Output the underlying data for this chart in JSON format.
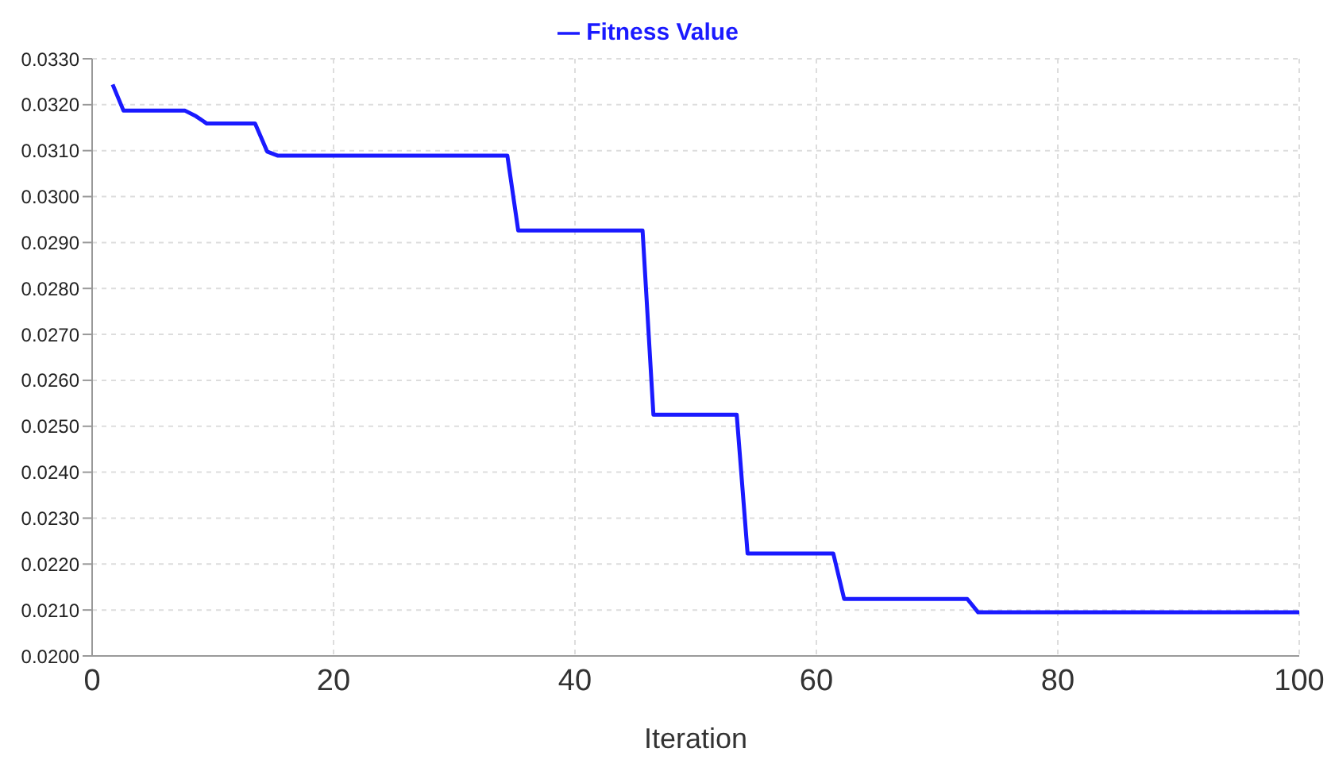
{
  "chart_data": {
    "type": "line",
    "xlabel": "Iteration",
    "x": [
      1.7,
      2.6,
      7.7,
      8.6,
      9.5,
      13.5,
      14.5,
      15.4,
      34.4,
      35.3,
      45.6,
      46.5,
      53.4,
      54.3,
      61.4,
      62.3,
      72.5,
      73.4,
      100
    ],
    "series": [
      {
        "name": "Fitness Value",
        "color": "#1a1aff",
        "values": [
          0.03244,
          0.03187,
          0.03187,
          0.03175,
          0.03159,
          0.03159,
          0.03098,
          0.03089,
          0.03089,
          0.02926,
          0.02926,
          0.02525,
          0.02525,
          0.02223,
          0.02223,
          0.02124,
          0.02124,
          0.02095,
          0.02095
        ]
      }
    ],
    "xlim": [
      0,
      100
    ],
    "xticks": [
      0,
      20,
      40,
      60,
      80,
      100
    ],
    "ylim": [
      0.02,
      0.033
    ],
    "yticks": [
      {
        "value": 0.02,
        "label": "0.0200"
      },
      {
        "value": 0.021,
        "label": "0.0210"
      },
      {
        "value": 0.022,
        "label": "0.0220"
      },
      {
        "value": 0.023,
        "label": "0.0230"
      },
      {
        "value": 0.024,
        "label": "0.0240"
      },
      {
        "value": 0.025,
        "label": "0.0250"
      },
      {
        "value": 0.026,
        "label": "0.0260"
      },
      {
        "value": 0.027,
        "label": "0.0270"
      },
      {
        "value": 0.028,
        "label": "0.0280"
      },
      {
        "value": 0.029,
        "label": "0.0290"
      },
      {
        "value": 0.03,
        "label": "0.0300"
      },
      {
        "value": 0.031,
        "label": "0.0310"
      },
      {
        "value": 0.032,
        "label": "0.0320"
      },
      {
        "value": 0.033,
        "label": "0.0330"
      }
    ],
    "grid": true,
    "legend": "top",
    "marker": "none",
    "line_style": "solid"
  }
}
